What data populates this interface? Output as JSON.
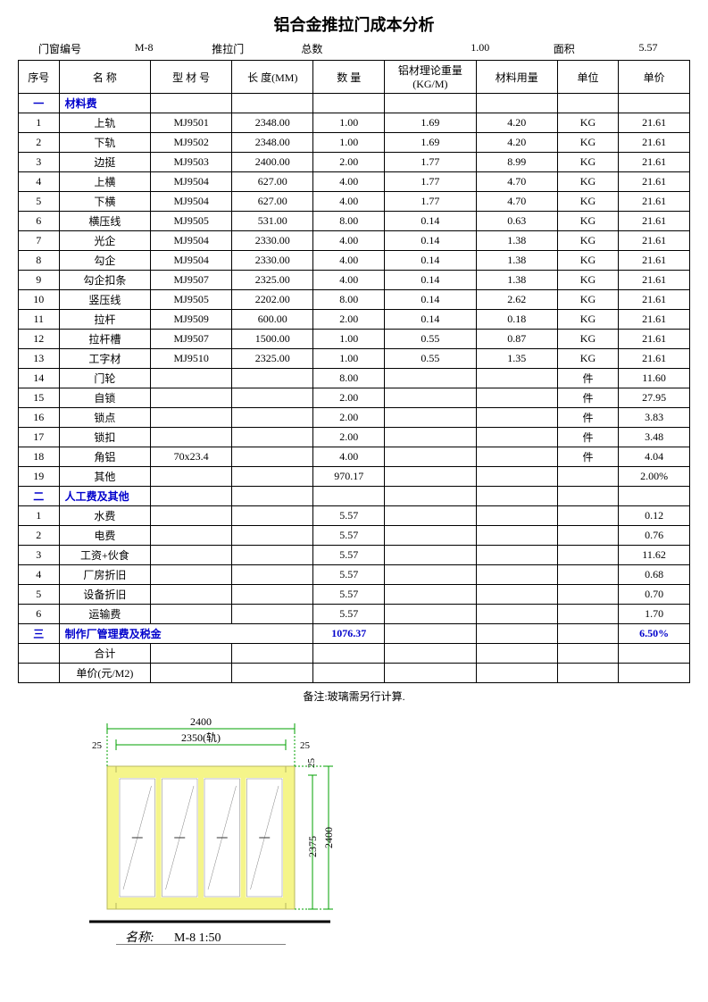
{
  "title": "铝合金推拉门成本分析",
  "info": {
    "label_id": "门窗编号",
    "id": "M-8",
    "type": "推拉门",
    "label_total": "总数",
    "total": "1.00",
    "label_area": "面积",
    "area": "5.57"
  },
  "headers": [
    "序号",
    "名 称",
    "型 材 号",
    "长 度(MM)",
    "数 量",
    "铝材理论重量(KG/M)",
    "材料用量",
    "单位",
    "单价"
  ],
  "sections": [
    {
      "idx": "一",
      "label": "材料费",
      "rows": [
        [
          "1",
          "上轨",
          "MJ9501",
          "2348.00",
          "1.00",
          "1.69",
          "4.20",
          "KG",
          "21.61"
        ],
        [
          "2",
          "下轨",
          "MJ9502",
          "2348.00",
          "1.00",
          "1.69",
          "4.20",
          "KG",
          "21.61"
        ],
        [
          "3",
          "边挺",
          "MJ9503",
          "2400.00",
          "2.00",
          "1.77",
          "8.99",
          "KG",
          "21.61"
        ],
        [
          "4",
          "上横",
          "MJ9504",
          "627.00",
          "4.00",
          "1.77",
          "4.70",
          "KG",
          "21.61"
        ],
        [
          "5",
          "下横",
          "MJ9504",
          "627.00",
          "4.00",
          "1.77",
          "4.70",
          "KG",
          "21.61"
        ],
        [
          "6",
          "横压线",
          "MJ9505",
          "531.00",
          "8.00",
          "0.14",
          "0.63",
          "KG",
          "21.61"
        ],
        [
          "7",
          "光企",
          "MJ9504",
          "2330.00",
          "4.00",
          "0.14",
          "1.38",
          "KG",
          "21.61"
        ],
        [
          "8",
          "勾企",
          "MJ9504",
          "2330.00",
          "4.00",
          "0.14",
          "1.38",
          "KG",
          "21.61"
        ],
        [
          "9",
          "勾企扣条",
          "MJ9507",
          "2325.00",
          "4.00",
          "0.14",
          "1.38",
          "KG",
          "21.61"
        ],
        [
          "10",
          "竖压线",
          "MJ9505",
          "2202.00",
          "8.00",
          "0.14",
          "2.62",
          "KG",
          "21.61"
        ],
        [
          "11",
          "拉杆",
          "MJ9509",
          "600.00",
          "2.00",
          "0.14",
          "0.18",
          "KG",
          "21.61"
        ],
        [
          "12",
          "拉杆槽",
          "MJ9507",
          "1500.00",
          "1.00",
          "0.55",
          "0.87",
          "KG",
          "21.61"
        ],
        [
          "13",
          "工字材",
          "MJ9510",
          "2325.00",
          "1.00",
          "0.55",
          "1.35",
          "KG",
          "21.61"
        ],
        [
          "14",
          "门轮",
          "",
          "",
          "8.00",
          "",
          "",
          "件",
          "11.60"
        ],
        [
          "15",
          "自锁",
          "",
          "",
          "2.00",
          "",
          "",
          "件",
          "27.95"
        ],
        [
          "16",
          "锁点",
          "",
          "",
          "2.00",
          "",
          "",
          "件",
          "3.83"
        ],
        [
          "17",
          "锁扣",
          "",
          "",
          "2.00",
          "",
          "",
          "件",
          "3.48"
        ],
        [
          "18",
          "角铝",
          "70x23.4",
          "",
          "4.00",
          "",
          "",
          "件",
          "4.04"
        ],
        [
          "19",
          "其他",
          "",
          "",
          "970.17",
          "",
          "",
          "",
          "2.00%"
        ]
      ]
    },
    {
      "idx": "二",
      "label": "人工费及其他",
      "rows": [
        [
          "1",
          "水费",
          "",
          "",
          "5.57",
          "",
          "",
          "",
          "0.12"
        ],
        [
          "2",
          "电费",
          "",
          "",
          "5.57",
          "",
          "",
          "",
          "0.76"
        ],
        [
          "3",
          "工资+伙食",
          "",
          "",
          "5.57",
          "",
          "",
          "",
          "11.62"
        ],
        [
          "4",
          "厂房折旧",
          "",
          "",
          "5.57",
          "",
          "",
          "",
          "0.68"
        ],
        [
          "5",
          "设备折旧",
          "",
          "",
          "5.57",
          "",
          "",
          "",
          "0.70"
        ],
        [
          "6",
          "运输费",
          "",
          "",
          "5.57",
          "",
          "",
          "",
          "1.70"
        ]
      ]
    }
  ],
  "sec3": {
    "idx": "三",
    "label": "制作厂管理费及税金",
    "qty": "1076.37",
    "rate": "6.50%"
  },
  "footer_rows": [
    [
      "",
      "合计",
      "",
      "",
      "",
      "",
      "",
      "",
      ""
    ],
    [
      "",
      "单价(元/M2)",
      "",
      "",
      "",
      "",
      "",
      "",
      ""
    ]
  ],
  "note": "备注:玻璃需另行计算.",
  "diagram": {
    "w_total": "2400",
    "w_inner": "2350(轨)",
    "margin": "25",
    "h_total": "2400",
    "h_inner": "2375",
    "name_label": "名称:",
    "name_value": "M-8  1:50",
    "frame_color": "#f5f58a",
    "dim_color": "#00a000",
    "glass_stroke": "#808080"
  }
}
